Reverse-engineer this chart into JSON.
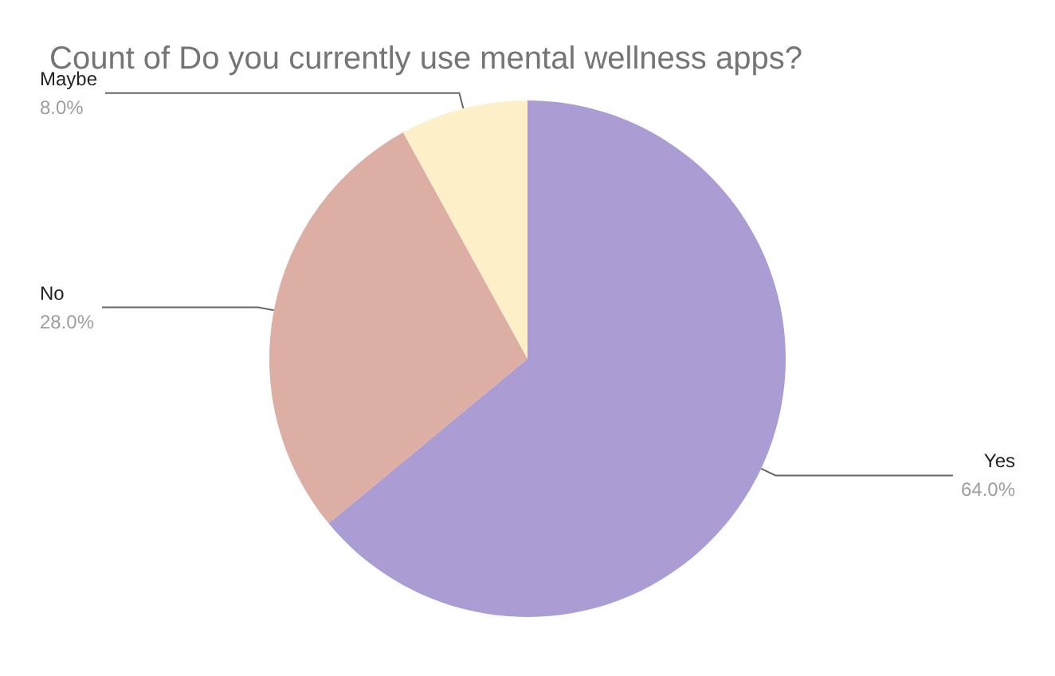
{
  "chart_data": {
    "type": "pie",
    "title": "Count of Do you currently use mental wellness apps?",
    "categories": [
      "Yes",
      "No",
      "Maybe"
    ],
    "values": [
      64,
      28,
      8
    ],
    "value_labels": [
      "64.0%",
      "28.0%",
      "8.0%"
    ],
    "colors": [
      "#ab9cd3",
      "#dcaea4",
      "#fdf0c8"
    ],
    "legend": false
  }
}
